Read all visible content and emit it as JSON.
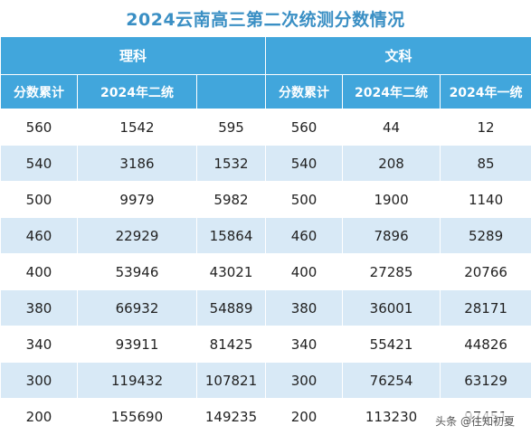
{
  "title": "2024云南高三第二次统测分数情况",
  "groups": {
    "science": "理科",
    "liberal_arts": "文科"
  },
  "columns": {
    "science": [
      "分数累计",
      "2024年二统",
      ""
    ],
    "liberal_arts": [
      "分数累计",
      "2024年二统",
      "2024年一统"
    ]
  },
  "rows": [
    [
      "560",
      "1542",
      "595",
      "560",
      "44",
      "12"
    ],
    [
      "540",
      "3186",
      "1532",
      "540",
      "208",
      "85"
    ],
    [
      "500",
      "9979",
      "5982",
      "500",
      "1900",
      "1140"
    ],
    [
      "460",
      "22929",
      "15864",
      "460",
      "7896",
      "5289"
    ],
    [
      "400",
      "53946",
      "43021",
      "400",
      "27285",
      "20766"
    ],
    [
      "380",
      "66932",
      "54889",
      "380",
      "36001",
      "28171"
    ],
    [
      "340",
      "93911",
      "81425",
      "340",
      "55421",
      "44826"
    ],
    [
      "300",
      "119432",
      "107821",
      "300",
      "76254",
      "63129"
    ],
    [
      "200",
      "155690",
      "149235",
      "200",
      "113230",
      "97451"
    ]
  ],
  "footer": "头条 @往知初夏",
  "colors": {
    "header_bg": "#41a6dc",
    "title": "#3a8fc4",
    "stripe": "#d8e9f6"
  }
}
